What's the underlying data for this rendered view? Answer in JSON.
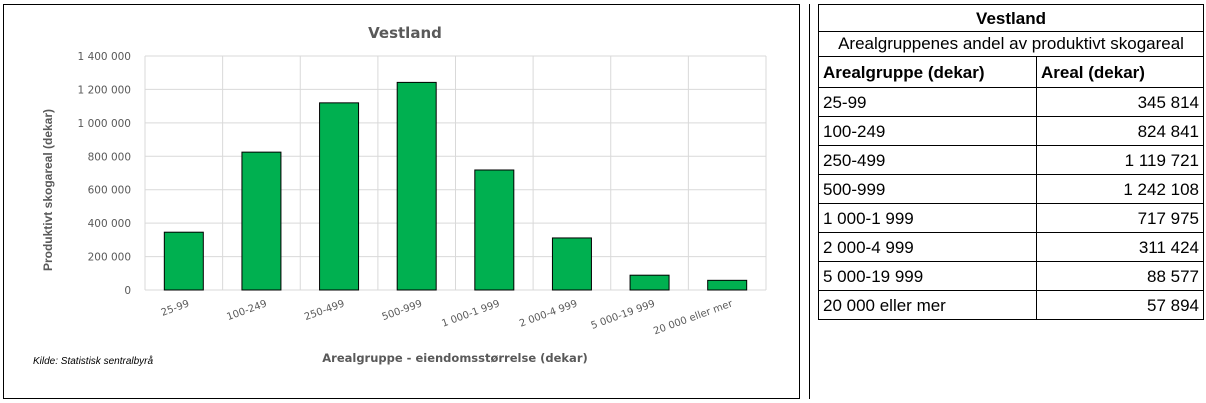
{
  "chart_data": {
    "type": "bar",
    "title": "Vestland",
    "xlabel": "Arealgruppe - eiendomsstørrelse (dekar)",
    "ylabel": "Produktivt skogareal (dekar)",
    "source": "Kilde: Statistisk sentralbyrå",
    "categories": [
      "25-99",
      "100-249",
      "250-499",
      "500-999",
      "1 000-1 999",
      "2 000-4 999",
      "5 000-19 999",
      "20 000 eller mer"
    ],
    "values": [
      345814,
      824841,
      1119721,
      1242108,
      717975,
      311424,
      88577,
      57894
    ],
    "ylim": [
      0,
      1400000
    ],
    "yticks": [
      0,
      200000,
      400000,
      600000,
      800000,
      1000000,
      1200000,
      1400000
    ],
    "ytick_labels": [
      "0",
      "200 000",
      "400 000",
      "600 000",
      "800 000",
      "1 000 000",
      "1 200 000",
      "1 400 000"
    ],
    "grid": true,
    "legend": "none",
    "bar_color": "#00b050"
  },
  "table": {
    "title": "Vestland",
    "subtitle": "Arealgruppenes andel av produktivt skogareal",
    "headers": [
      "Arealgruppe (dekar)",
      "Areal (dekar)"
    ],
    "rows": [
      [
        "25-99",
        "345 814"
      ],
      [
        "100-249",
        "824 841"
      ],
      [
        "250-499",
        "1 119 721"
      ],
      [
        "500-999",
        "1 242 108"
      ],
      [
        "1 000-1 999",
        "717 975"
      ],
      [
        "2 000-4 999",
        "311 424"
      ],
      [
        "5 000-19 999",
        "88 577"
      ],
      [
        "20 000 eller mer",
        "57 894"
      ]
    ]
  }
}
